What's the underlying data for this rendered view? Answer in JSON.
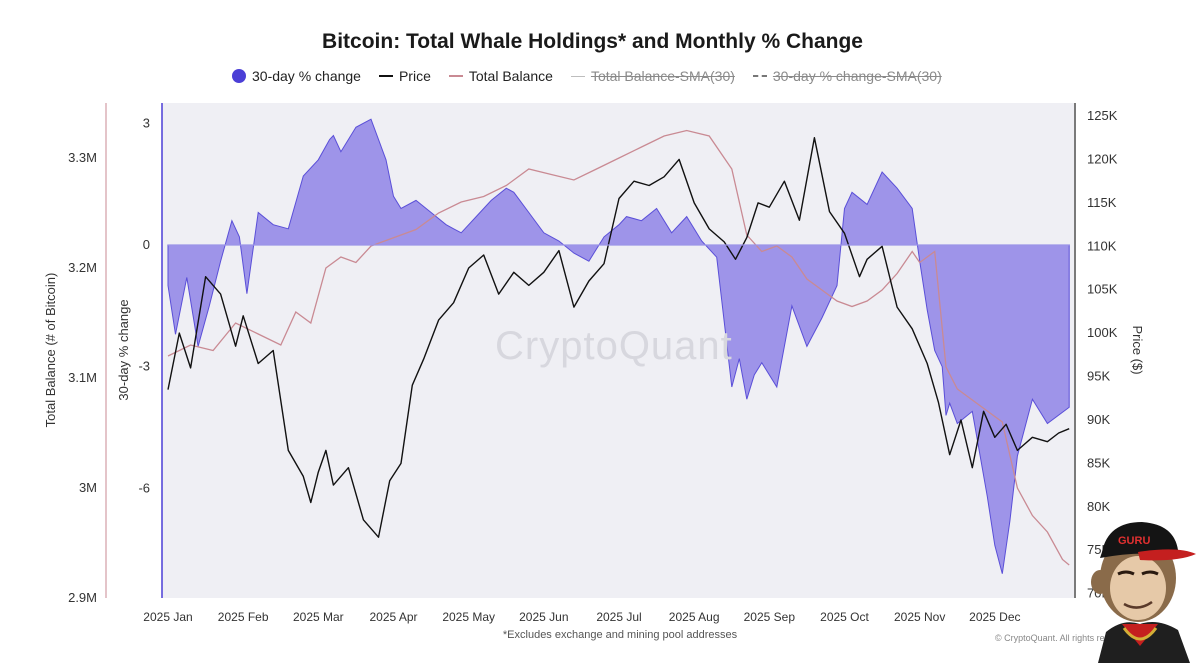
{
  "chart_data": {
    "type": "line",
    "title": "Bitcoin: Total Whale Holdings* and Monthly % Change",
    "legend": [
      {
        "label": "30-day % change",
        "style": "dot",
        "enabled": true
      },
      {
        "label": "Price",
        "style": "line",
        "enabled": true
      },
      {
        "label": "Total Balance",
        "style": "pink-line",
        "enabled": true
      },
      {
        "label": "Total Balance-SMA(30)",
        "style": "gray-line",
        "enabled": false
      },
      {
        "label": "30-day % change-SMA(30)",
        "style": "dashed-line",
        "enabled": false
      }
    ],
    "x_labels": [
      "2025 Jan",
      "2025 Feb",
      "2025 Mar",
      "2025 Apr",
      "2025 May",
      "2025 Jun",
      "2025 Jul",
      "2025 Aug",
      "2025 Sep",
      "2025 Oct",
      "2025 Nov",
      "2025 Dec"
    ],
    "axes": {
      "balance": {
        "label": "Total Balance (# of Bitcoin)",
        "ticks": [
          "3.3M",
          "3.2M",
          "3.1M",
          "3M",
          "2.9M"
        ],
        "tick_values": [
          3.3,
          3.2,
          3.1,
          3.0,
          2.9
        ],
        "range": [
          2.9,
          3.35
        ],
        "unit": "M BTC"
      },
      "pct": {
        "label": "30-day % change",
        "ticks": [
          "3",
          "0",
          "-3",
          "-6"
        ],
        "tick_values": [
          3,
          0,
          -3,
          -6
        ],
        "range": [
          -8.7,
          3.5
        ]
      },
      "price": {
        "label": "Price ($)",
        "ticks": [
          "125K",
          "120K",
          "115K",
          "110K",
          "105K",
          "100K",
          "95K",
          "90K",
          "85K",
          "80K",
          "75K",
          "70K"
        ],
        "tick_values": [
          125,
          120,
          115,
          110,
          105,
          100,
          95,
          90,
          85,
          80,
          75,
          70
        ],
        "range": [
          69.5,
          126.5
        ],
        "unit": "K USD"
      }
    },
    "series": [
      {
        "name": "30-day % change",
        "axis": "pct",
        "x": [
          0,
          0.1,
          0.25,
          0.4,
          0.55,
          0.7,
          0.85,
          0.95,
          1.05,
          1.2,
          1.4,
          1.6,
          1.8,
          2.0,
          2.15,
          2.2,
          2.3,
          2.5,
          2.7,
          2.9,
          3.0,
          3.1,
          3.3,
          3.5,
          3.7,
          3.8,
          3.9,
          4.1,
          4.3,
          4.5,
          4.6,
          4.8,
          5.0,
          5.2,
          5.4,
          5.6,
          5.8,
          6.0,
          6.1,
          6.3,
          6.5,
          6.7,
          6.9,
          7.1,
          7.3,
          7.5,
          7.6,
          7.7,
          7.8,
          7.9,
          8.1,
          8.3,
          8.5,
          8.7,
          8.9,
          9.0,
          9.1,
          9.3,
          9.5,
          9.7,
          9.9,
          10.0,
          10.1,
          10.2,
          10.3,
          10.35,
          10.4,
          10.5,
          10.7,
          10.9,
          11.0,
          11.1,
          11.2,
          11.3,
          11.5,
          11.7,
          11.99
        ],
        "values": [
          -1.0,
          -2.2,
          -0.8,
          -2.5,
          -1.5,
          -0.4,
          0.6,
          0.2,
          -1.2,
          0.8,
          0.5,
          0.4,
          1.7,
          2.1,
          2.6,
          2.7,
          2.3,
          2.9,
          3.1,
          2.1,
          1.2,
          0.9,
          1.1,
          0.8,
          0.5,
          0.4,
          0.3,
          0.7,
          1.1,
          1.4,
          1.3,
          0.8,
          0.3,
          0.1,
          -0.2,
          -0.4,
          0.2,
          0.5,
          0.7,
          0.6,
          0.9,
          0.3,
          0.7,
          0.1,
          -0.3,
          -3.5,
          -2.8,
          -3.8,
          -3.2,
          -2.9,
          -3.5,
          -1.5,
          -2.5,
          -1.8,
          -1.0,
          0.9,
          1.3,
          1.0,
          1.8,
          1.4,
          0.9,
          -0.4,
          -1.6,
          -2.6,
          -3.0,
          -4.2,
          -3.9,
          -4.4,
          -4.1,
          -6.2,
          -7.4,
          -8.1,
          -6.8,
          -5.2,
          -3.8,
          -4.4,
          -4.0
        ]
      },
      {
        "name": "Price",
        "axis": "price",
        "x": [
          0,
          0.15,
          0.3,
          0.5,
          0.7,
          0.9,
          1.0,
          1.2,
          1.4,
          1.6,
          1.8,
          1.9,
          2.0,
          2.1,
          2.2,
          2.4,
          2.6,
          2.8,
          2.95,
          3.1,
          3.25,
          3.4,
          3.6,
          3.8,
          4.0,
          4.2,
          4.4,
          4.6,
          4.8,
          5.0,
          5.2,
          5.4,
          5.6,
          5.8,
          6.0,
          6.2,
          6.4,
          6.6,
          6.8,
          7.0,
          7.2,
          7.4,
          7.55,
          7.7,
          7.85,
          8.0,
          8.2,
          8.4,
          8.6,
          8.8,
          9.0,
          9.2,
          9.3,
          9.5,
          9.7,
          9.9,
          10.1,
          10.25,
          10.4,
          10.55,
          10.7,
          10.85,
          11.0,
          11.15,
          11.3,
          11.5,
          11.7,
          11.85,
          11.99
        ],
        "values": [
          93.5,
          100.0,
          96.0,
          106.5,
          104.5,
          98.5,
          102.0,
          96.5,
          98.0,
          86.5,
          83.5,
          80.5,
          84.0,
          86.5,
          82.5,
          84.5,
          78.5,
          76.5,
          83.0,
          85.0,
          94.0,
          97.0,
          101.5,
          103.5,
          107.5,
          109.0,
          104.5,
          107.0,
          105.5,
          107.0,
          109.5,
          103.0,
          106.0,
          108.0,
          115.5,
          117.5,
          117.0,
          118.0,
          120.0,
          115.0,
          112.0,
          110.5,
          108.5,
          111.0,
          115.0,
          114.5,
          117.5,
          113.0,
          122.5,
          114.0,
          111.5,
          106.5,
          108.5,
          110.0,
          103.0,
          100.5,
          96.5,
          92.0,
          86.0,
          90.0,
          84.5,
          91.0,
          88.0,
          89.5,
          86.5,
          88.0,
          87.5,
          88.5,
          89.0
        ]
      },
      {
        "name": "Total Balance",
        "axis": "balance",
        "x": [
          0,
          0.3,
          0.6,
          0.9,
          1.2,
          1.5,
          1.7,
          1.9,
          2.1,
          2.3,
          2.5,
          2.7,
          2.9,
          3.1,
          3.3,
          3.6,
          3.9,
          4.2,
          4.5,
          4.8,
          5.1,
          5.4,
          5.7,
          6.0,
          6.3,
          6.6,
          6.9,
          7.2,
          7.5,
          7.7,
          7.9,
          8.1,
          8.3,
          8.5,
          8.7,
          8.9,
          9.1,
          9.3,
          9.5,
          9.7,
          9.9,
          10.0,
          10.1,
          10.2,
          10.35,
          10.5,
          10.7,
          10.9,
          11.1,
          11.3,
          11.5,
          11.7,
          11.9,
          11.99
        ],
        "values": [
          3.12,
          3.13,
          3.125,
          3.15,
          3.14,
          3.13,
          3.16,
          3.15,
          3.2,
          3.21,
          3.205,
          3.22,
          3.225,
          3.23,
          3.235,
          3.25,
          3.26,
          3.265,
          3.275,
          3.29,
          3.285,
          3.28,
          3.29,
          3.3,
          3.31,
          3.32,
          3.325,
          3.32,
          3.29,
          3.23,
          3.215,
          3.22,
          3.21,
          3.19,
          3.18,
          3.17,
          3.165,
          3.17,
          3.18,
          3.195,
          3.215,
          3.205,
          3.21,
          3.215,
          3.11,
          3.09,
          3.08,
          3.07,
          3.06,
          3.0,
          2.975,
          2.96,
          2.935,
          2.93
        ]
      }
    ]
  },
  "footnote": "*Excludes exchange and mining pool addresses",
  "copyright": "© CryptoQuant. All rights reserved",
  "watermark": "CryptoQuant",
  "avatar_cap_text": "GURU"
}
